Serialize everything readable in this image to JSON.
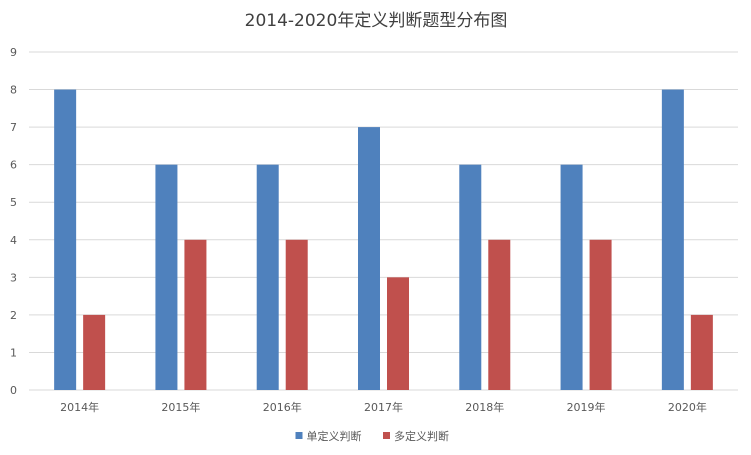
{
  "chart_data": {
    "type": "bar",
    "title": "2014-2020年定义判断题型分布图",
    "xlabel": "",
    "ylabel": "",
    "categories": [
      "2014年",
      "2015年",
      "2016年",
      "2017年",
      "2018年",
      "2019年",
      "2020年"
    ],
    "series": [
      {
        "name": "单定义判断",
        "color": "#4f81bd",
        "values": [
          8,
          6,
          6,
          7,
          6,
          6,
          8
        ]
      },
      {
        "name": "多定义判断",
        "color": "#c0504d",
        "values": [
          2,
          4,
          4,
          3,
          4,
          4,
          2
        ]
      }
    ],
    "ylim": [
      0,
      9
    ],
    "yticks": [
      0,
      1,
      2,
      3,
      4,
      5,
      6,
      7,
      8,
      9
    ],
    "grid": true,
    "legend_position": "bottom"
  }
}
